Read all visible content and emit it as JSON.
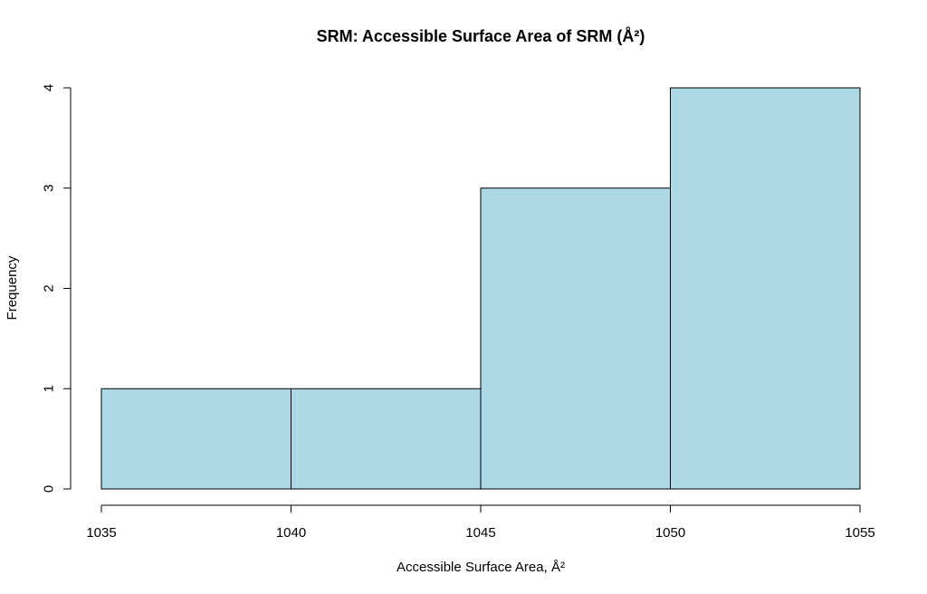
{
  "chart_data": {
    "type": "bar",
    "subtype": "histogram",
    "title": "SRM: Accessible Surface Area of SRM (Å²)",
    "xlabel": "Accessible Surface Area, Å²",
    "ylabel": "Frequency",
    "bins": [
      {
        "start": 1035,
        "end": 1040,
        "count": 1
      },
      {
        "start": 1040,
        "end": 1045,
        "count": 1
      },
      {
        "start": 1045,
        "end": 1050,
        "count": 3
      },
      {
        "start": 1050,
        "end": 1055,
        "count": 4
      }
    ],
    "xlim": [
      1035,
      1055
    ],
    "ylim": [
      0,
      4
    ],
    "xticks": [
      1035,
      1040,
      1045,
      1050,
      1055
    ],
    "xtick_labels": [
      "1035",
      "1040",
      "1045",
      "1050",
      "1055"
    ],
    "yticks": [
      0,
      1,
      2,
      3,
      4
    ],
    "ytick_labels": [
      "0",
      "1",
      "2",
      "3",
      "4"
    ],
    "grid": false,
    "bar_color": "#add8e6",
    "edge_color": "#000000"
  }
}
